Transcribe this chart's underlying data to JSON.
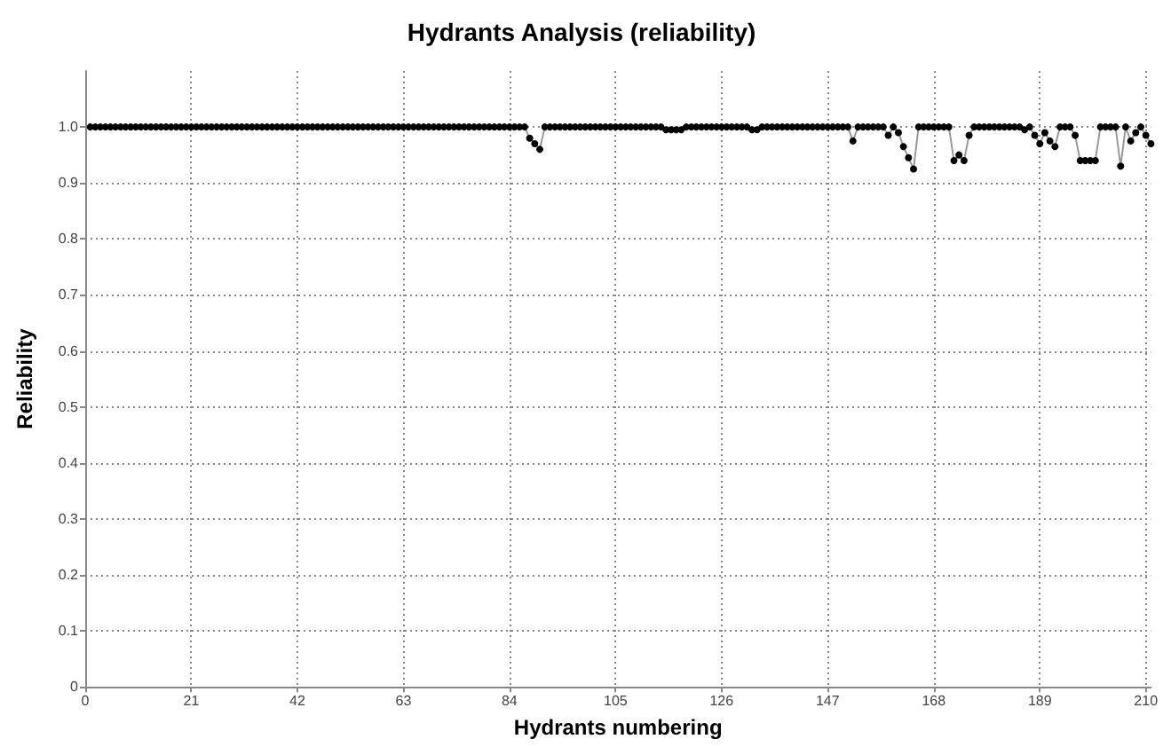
{
  "chart_data": {
    "type": "line",
    "title": "Hydrants Analysis (reliability)",
    "xlabel": "Hydrants numbering",
    "ylabel": "Reliability",
    "x": [
      1,
      2,
      3,
      4,
      5,
      6,
      7,
      8,
      9,
      10,
      11,
      12,
      13,
      14,
      15,
      16,
      17,
      18,
      19,
      20,
      21,
      22,
      23,
      24,
      25,
      26,
      27,
      28,
      29,
      30,
      31,
      32,
      33,
      34,
      35,
      36,
      37,
      38,
      39,
      40,
      41,
      42,
      43,
      44,
      45,
      46,
      47,
      48,
      49,
      50,
      51,
      52,
      53,
      54,
      55,
      56,
      57,
      58,
      59,
      60,
      61,
      62,
      63,
      64,
      65,
      66,
      67,
      68,
      69,
      70,
      71,
      72,
      73,
      74,
      75,
      76,
      77,
      78,
      79,
      80,
      81,
      82,
      83,
      84,
      85,
      86,
      87,
      88,
      89,
      90,
      91,
      92,
      93,
      94,
      95,
      96,
      97,
      98,
      99,
      100,
      101,
      102,
      103,
      104,
      105,
      106,
      107,
      108,
      109,
      110,
      111,
      112,
      113,
      114,
      115,
      116,
      117,
      118,
      119,
      120,
      121,
      122,
      123,
      124,
      125,
      126,
      127,
      128,
      129,
      130,
      131,
      132,
      133,
      134,
      135,
      136,
      137,
      138,
      139,
      140,
      141,
      142,
      143,
      144,
      145,
      146,
      147,
      148,
      149,
      150,
      151,
      152,
      153,
      154,
      155,
      156,
      157,
      158,
      159,
      160,
      161,
      162,
      163,
      164,
      165,
      166,
      167,
      168,
      169,
      170,
      171,
      172,
      173,
      174,
      175,
      176,
      177,
      178,
      179,
      180,
      181,
      182,
      183,
      184,
      185,
      186,
      187,
      188,
      189,
      190,
      191,
      192,
      193,
      194,
      195,
      196,
      197,
      198,
      199,
      200,
      201,
      202,
      203,
      204,
      205,
      206,
      207,
      208,
      209,
      210,
      211
    ],
    "series": [
      {
        "color": "#000000",
        "values": [
          1,
          1,
          1,
          1,
          1,
          1,
          1,
          1,
          1,
          1,
          1,
          1,
          1,
          1,
          1,
          1,
          1,
          1,
          1,
          1,
          1,
          1,
          1,
          1,
          1,
          1,
          1,
          1,
          1,
          1,
          1,
          1,
          1,
          1,
          1,
          1,
          1,
          1,
          1,
          1,
          1,
          1,
          1,
          1,
          1,
          1,
          1,
          1,
          1,
          1,
          1,
          1,
          1,
          1,
          1,
          1,
          1,
          1,
          1,
          1,
          1,
          1,
          1,
          1,
          1,
          1,
          1,
          1,
          1,
          1,
          1,
          1,
          1,
          1,
          1,
          1,
          1,
          1,
          1,
          1,
          1,
          1,
          1,
          1,
          1,
          1,
          1,
          0.98,
          0.97,
          0.96,
          1,
          1,
          1,
          1,
          1,
          1,
          1,
          1,
          1,
          1,
          1,
          1,
          1,
          1,
          1,
          1,
          1,
          1,
          1,
          1,
          1,
          1,
          1,
          1,
          0.995,
          0.995,
          0.995,
          0.995,
          1,
          1,
          1,
          1,
          1,
          1,
          1,
          1,
          1,
          1,
          1,
          1,
          1,
          0.995,
          0.995,
          1,
          1,
          1,
          1,
          1,
          1,
          1,
          1,
          1,
          1,
          1,
          1,
          1,
          1,
          1,
          1,
          1,
          1,
          0.975,
          1,
          1,
          1,
          1,
          1,
          1,
          0.985,
          1,
          0.99,
          0.965,
          0.945,
          0.925,
          1,
          1,
          1,
          1,
          1,
          1,
          1,
          0.94,
          0.95,
          0.94,
          0.985,
          1,
          1,
          1,
          1,
          1,
          1,
          1,
          1,
          1,
          1,
          0.995,
          1,
          0.985,
          0.97,
          0.99,
          0.975,
          0.965,
          1,
          1,
          1,
          0.985,
          0.94,
          0.94,
          0.94,
          0.94,
          1,
          1,
          1,
          1,
          0.93,
          1,
          0.975,
          0.99,
          1,
          0.985,
          0.97
        ]
      }
    ],
    "xlim": [
      0,
      211
    ],
    "xticks": [
      0,
      21,
      42,
      63,
      84,
      105,
      126,
      147,
      168,
      189,
      210
    ],
    "ylim": [
      0,
      1.1
    ],
    "yticks": [
      0,
      0.1,
      0.2,
      0.3,
      0.4,
      0.5,
      0.6,
      0.7,
      0.8,
      0.9,
      {
        "value": 1,
        "label": "1.0"
      }
    ],
    "grid": true,
    "marker": "circle",
    "line_style": "solid"
  }
}
